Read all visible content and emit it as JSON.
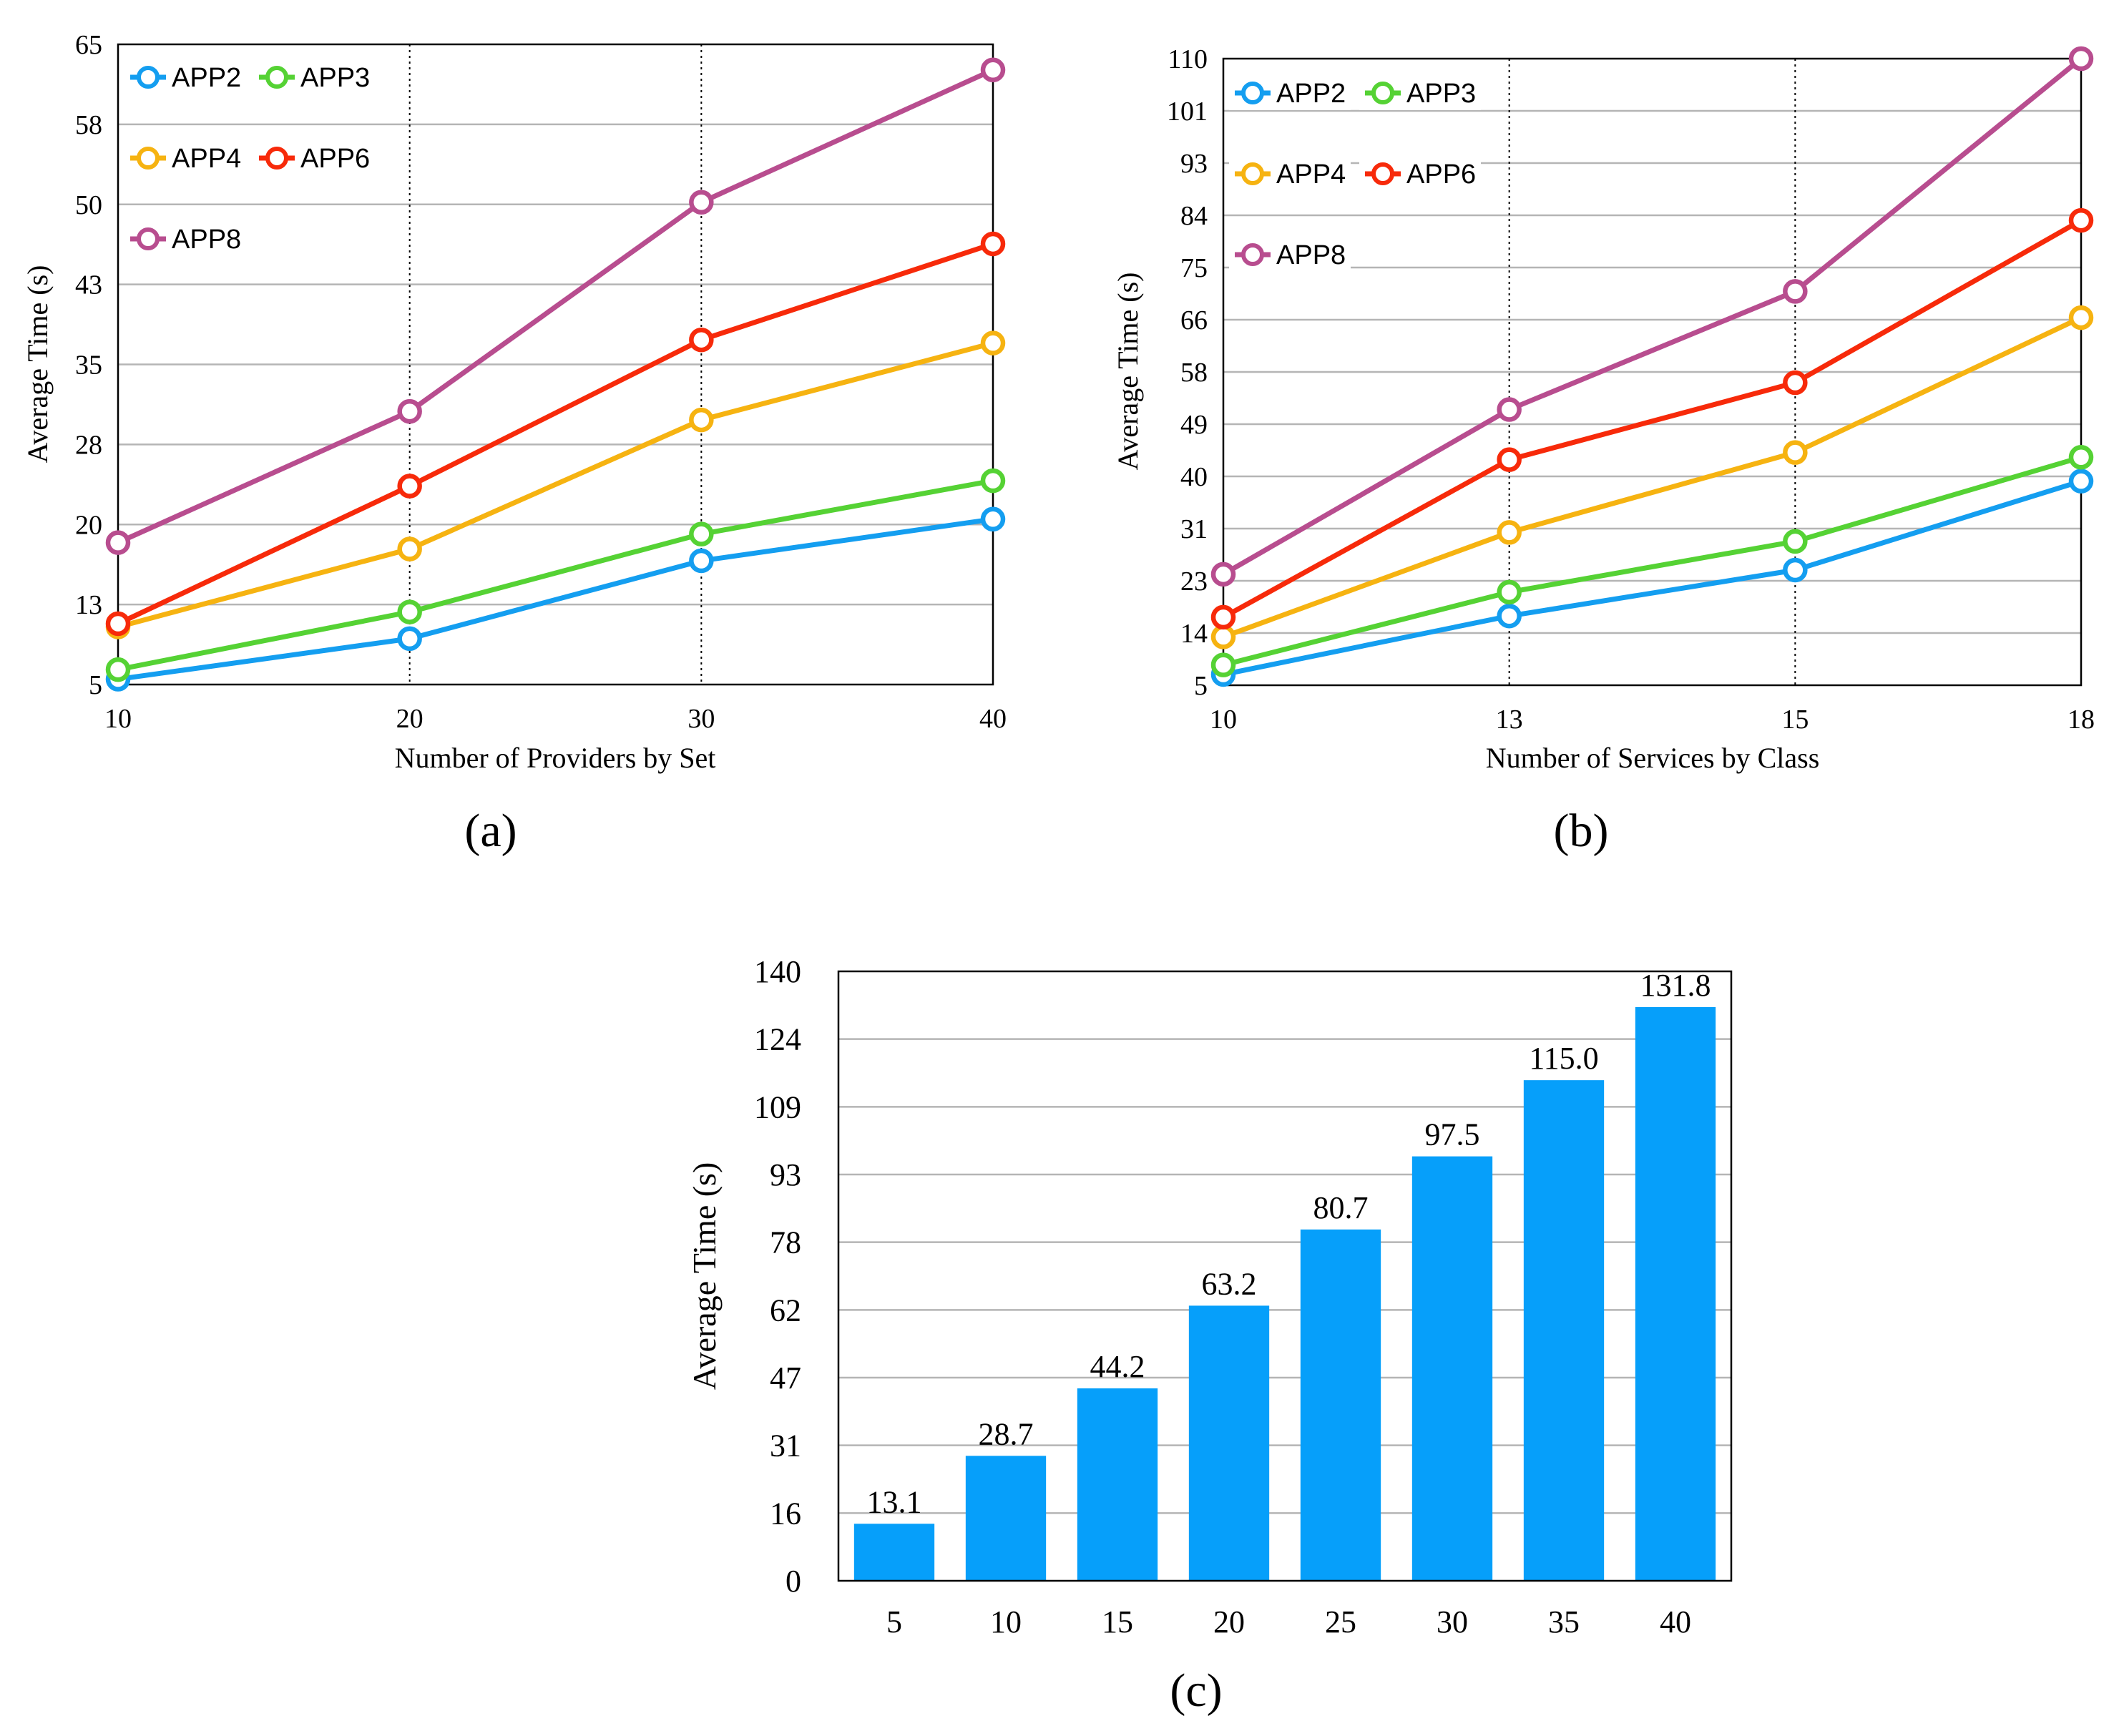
{
  "chart_data": [
    {
      "id": "a",
      "type": "line",
      "panel_label": "(a)",
      "xlabel": "Number of Providers by Set",
      "ylabel": "Average Time (s)",
      "categories": [
        "10",
        "20",
        "30",
        "40"
      ],
      "y_ticks": [
        "5",
        "13",
        "20",
        "28",
        "35",
        "43",
        "50",
        "58",
        "65"
      ],
      "ylim": [
        5,
        65
      ],
      "vertical_dotted_at": [
        1,
        2
      ],
      "legend_position": "top-left",
      "series": [
        {
          "name": "APP2",
          "color": "#149ef0",
          "values": [
            5.5,
            9.3,
            16.6,
            20.5
          ]
        },
        {
          "name": "APP3",
          "color": "#55d234",
          "values": [
            6.4,
            11.8,
            19.1,
            24.1
          ]
        },
        {
          "name": "APP4",
          "color": "#f6b311",
          "values": [
            10.4,
            17.7,
            29.8,
            37.0
          ]
        },
        {
          "name": "APP6",
          "color": "#f72a0a",
          "values": [
            10.7,
            23.6,
            37.3,
            46.3
          ]
        },
        {
          "name": "APP8",
          "color": "#b84d8f",
          "values": [
            18.3,
            30.6,
            50.2,
            62.6
          ]
        }
      ]
    },
    {
      "id": "b",
      "type": "line",
      "panel_label": "(b)",
      "xlabel": "Number of Services by Class",
      "ylabel": "Average Time (s)",
      "categories": [
        "10",
        "13",
        "15",
        "18"
      ],
      "y_ticks": [
        "5",
        "14",
        "23",
        "31",
        "40",
        "49",
        "58",
        "66",
        "75",
        "84",
        "93",
        "101",
        "110"
      ],
      "ylim": [
        5,
        110
      ],
      "vertical_dotted_at": [
        1,
        2
      ],
      "legend_position": "top-left",
      "series": [
        {
          "name": "APP2",
          "color": "#149ef0",
          "values": [
            6.8,
            16.6,
            24.3,
            39.2
          ]
        },
        {
          "name": "APP3",
          "color": "#55d234",
          "values": [
            8.4,
            20.6,
            29.1,
            43.2
          ]
        },
        {
          "name": "APP4",
          "color": "#f6b311",
          "values": [
            13.1,
            30.6,
            44.0,
            66.6
          ]
        },
        {
          "name": "APP6",
          "color": "#f72a0a",
          "values": [
            16.4,
            42.8,
            55.7,
            82.9
          ]
        },
        {
          "name": "APP8",
          "color": "#b84d8f",
          "values": [
            23.6,
            51.2,
            71.0,
            110.0
          ]
        }
      ]
    },
    {
      "id": "c",
      "type": "bar",
      "panel_label": "(c)",
      "xlabel": "",
      "ylabel": "Average Time (s)",
      "categories": [
        "5",
        "10",
        "15",
        "20",
        "25",
        "30",
        "35",
        "40"
      ],
      "values": [
        13.1,
        28.7,
        44.2,
        63.2,
        80.7,
        97.5,
        115.0,
        131.8
      ],
      "data_labels": [
        "13.1",
        "28.7",
        "44.2",
        "63.2",
        "80.7",
        "97.5",
        "115.0",
        "131.8"
      ],
      "y_ticks": [
        "0",
        "16",
        "31",
        "47",
        "62",
        "78",
        "93",
        "109",
        "124",
        "140"
      ],
      "ylim": [
        0,
        140
      ],
      "color": "#069ffa"
    }
  ]
}
